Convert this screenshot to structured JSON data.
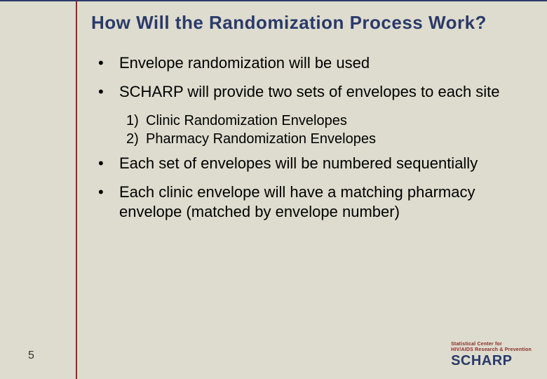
{
  "colors": {
    "background": "#dedcce",
    "title": "#2a3a6b",
    "accent_left_border": "#8b2a2a",
    "top_border": "#2a3a6b",
    "body_text": "#000000",
    "logo_tag": "#8b2a2a",
    "logo_brand": "#2a3a6b"
  },
  "typography": {
    "title_font": "Arial Black",
    "title_size_pt": 20,
    "body_font": "Arial",
    "body_size_pt": 17,
    "sub_size_pt": 15
  },
  "slide": {
    "title": "How Will the Randomization Process Work?",
    "bullets": [
      {
        "text": "Envelope randomization will be used"
      },
      {
        "text": "SCHARP will provide two sets of envelopes to each site",
        "sub": [
          "Clinic Randomization Envelopes",
          "Pharmacy Randomization Envelopes"
        ]
      },
      {
        "text": "Each set of envelopes will be numbered sequentially"
      },
      {
        "text": "Each clinic envelope will have a matching pharmacy envelope (matched by envelope number)"
      }
    ],
    "number": "5"
  },
  "logo": {
    "tag_line1": "Statistical Center for",
    "tag_line2": "HIV/AIDS Research & Prevention",
    "brand": "SCHARP"
  }
}
